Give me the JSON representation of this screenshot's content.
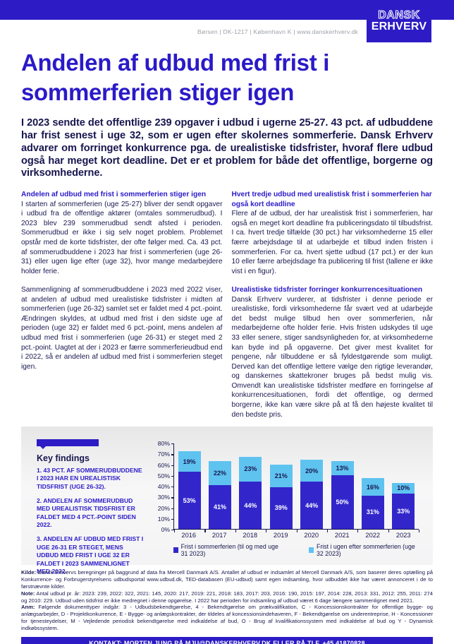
{
  "colors": {
    "brand_blue": "#2d1cc5",
    "bar_dark_blue": "#3226cb",
    "bar_light_blue": "#5fc3f0",
    "text_navy": "#1a1850"
  },
  "header": {
    "address": "Børsen | DK-1217 | København K | www.danskerhverv.dk",
    "logo_line1": "DANSK",
    "logo_line2": "ERHVERV"
  },
  "title": "Andelen af udbud med frist i sommerferien stiger igen",
  "intro": "I 2023 sendte det offentlige 239 opgaver i udbud i ugerne 25-27. 43 pct. af udbuddene har frist senest i uge 32, som er ugen efter skolernes sommerferie. Dansk Erhverv advarer om forringet konkurrence pga. de urealistiske tidsfrister, hvoraf flere udbud også har meget kort deadline. Det er et problem for både det offentlige, borgerne og virksomhederne.",
  "columns": {
    "left": {
      "heading": "Andelen af udbud med frist i sommerferien stiger igen",
      "para1": "I starten af sommerferien (uge 25-27) bliver der sendt opgaver i udbud fra de offentlige aktører (omtales sommerudbud). I 2023 blev 239 sommerudbud sendt afsted i perioden. Sommerudbud er ikke i sig selv noget problem. Problemet opstår med de korte tidsfrister, der ofte følger med. Ca. 43 pct. af sommerudbuddene i 2023 har frist i sommerferien (uge 26-31) eller ugen lige efter (uge 32), hvor mange medarbejdere holder ferie.",
      "para2": "Sammenligning af sommerudbuddene i 2023 med 2022 viser, at andelen af udbud med urealistiske tidsfrister i midten af sommerferien (uge 26-32) samlet set er faldet med 4 pct.-point. Ændringen skyldes, at udbud med frist i den sidste uge af perioden (uge 32) er faldet med 6 pct.-point, mens andelen af udbud med frist i sommerferien (uge 26-31) er steget med 2 pct.-point. Uagtet at der i 2023 er færre sommerferieudbud end i 2022, så er andelen af udbud med frist i sommerferien steget igen."
    },
    "right": {
      "heading1": "Hvert tredje udbud med urealistisk frist i sommerferien har også kort deadline",
      "para1": "Flere af de udbud, der har urealistisk frist i sommerferien, har også en meget kort deadline fra publiceringsdato til tilbudsfrist. I ca. hvert tredje tilfælde (30 pct.) har virksomhederne 15 eller færre arbejdsdage til at udarbejde et tilbud inden fristen i sommerferien. For ca. hvert sjette udbud (17 pct.) er der kun 10 eller færre arbejdsdage fra publicering til frist (tallene er ikke vist i en figur).",
      "heading2": "Urealistiske tidsfrister forringer konkurrencesituationen",
      "para2": "Dansk Erhverv vurderer, at tidsfrister i denne periode er urealistiske, fordi virksomhederne får svært ved at udarbejde det bedst mulige tilbud hen over sommerferien, når medarbejderne ofte holder ferie. Hvis fristen udskydes til uge 33 eller senere, stiger sandsynligheden for, at virksomhederne kan byde ind på opgaverne. Det giver mest kvalitet for pengene, når tilbuddene er så fyldestgørende som muligt. Derved kan det offentlige lettere vælge den rigtige leverandør, og danskernes skattekroner bruges på bedst mulig vis. Omvendt kan urealistiske tidsfrister medføre en forringelse af konkurrencesituationen, fordi det offentlige, og dermed borgerne, ikke kan være sikre på at få den højeste kvalitet til den bedste pris."
    }
  },
  "key_findings": {
    "title": "Key findings",
    "items": [
      "1. 43 PCT. AF SOMMERUDBUDDENE I 2023 HAR EN UREALISTISK TIDSFRIST (UGE 26-32).",
      "2. ANDELEN AF SOMMERUDBUD MED UREALISTISK TIDSFRIST ER FALDET MED 4 PCT.-POINT SIDEN 2022.",
      "3. ANDELEN AF UDBUD MED FRIST I UGE 26-31 ER STEGET, MENS UDBUD MED FRIST I UGE 32 ER FALDET I 2023 SAMMENLIGNET MED 2022."
    ]
  },
  "chart_data": {
    "type": "bar",
    "stacked": true,
    "categories": [
      "2016",
      "2017",
      "2018",
      "2019",
      "2020",
      "2021",
      "2022",
      "2023"
    ],
    "series": [
      {
        "name": "Frist i sommerferien (til og med uge 31 2023)",
        "color": "#3226cb",
        "values": [
          53,
          41,
          44,
          39,
          44,
          50,
          31,
          33
        ]
      },
      {
        "name": "Frist i ugen efter sommerferien (uge 32 2023)",
        "color": "#5fc3f0",
        "values": [
          19,
          22,
          23,
          21,
          20,
          13,
          16,
          10
        ]
      }
    ],
    "value_suffix": "%",
    "ylim": [
      0,
      80
    ],
    "ytick_step": 10,
    "ytick_suffix": "%",
    "grid": false,
    "legend_position": "bottom"
  },
  "footnotes": {
    "kilde_label": "Kilde:",
    "kilde": "Dansk Erhvervs beregninger på baggrund af data fra Mercell Danmark A/S. Antallet af udbud er indsamlet af Mercell Danmark A/S, som baserer deres optælling på Konkurrence- og Forbrugerstyrelsens udbudsportal www.udbud.dk, TED-databasen (EU-udbud) samt egen indsamling, hvor udbuddet ikke har været annonceret i de to førstnævnte kilder.",
    "note_label": "Note:",
    "note": "Antal udbud pr. år: 2023: 239, 2022: 322, 2021: 145, 2020: 217, 2019: 221, 2018: 183, 2017: 203, 2016: 190, 2015: 197, 2014: 228, 2013: 331, 2012: 255, 2011: 274 og 2010: 229. Udbud uden tidsfrist er ikke medregnet i denne opgørelse. I 2022 har perioden for indsamling af udbud været 6 dage længere sammenlignet med 2021.",
    "anm_label": "Anm:",
    "anm": "Følgende dokumenttyper indgår: 3 - Udbudsbekendtgørelse, 4 - Bekendtgørelse om prækvalifikation, C - Koncessionskontrakter for offentlige bygge- og anlægsarbejder, D - Projektkonkurrence, E - Bygge- og anlægskontrakter, der tildeles af koncessionsindehaveren, F - Bekendtgørelse om underentreprise, H - Koncessioner for tjenesteydelser, M - Vejledende periodisk bekendtgørelse med indkaldelse af bud, O - Brug af kvalifikationssystem med indkaldelse af bud og Y - Dynamisk indkøbssystem.",
    "om_label": "OM DETTE NOTAT:",
    "om": "Arbejdet med analysenotatet er afsluttet den 18. juli 2023."
  },
  "contact_bar": "KONTAKT: MORTEN JUNG PÅ MJU@DANSKERHVERV.DK ELLER PÅ TLF. +45 41870828"
}
